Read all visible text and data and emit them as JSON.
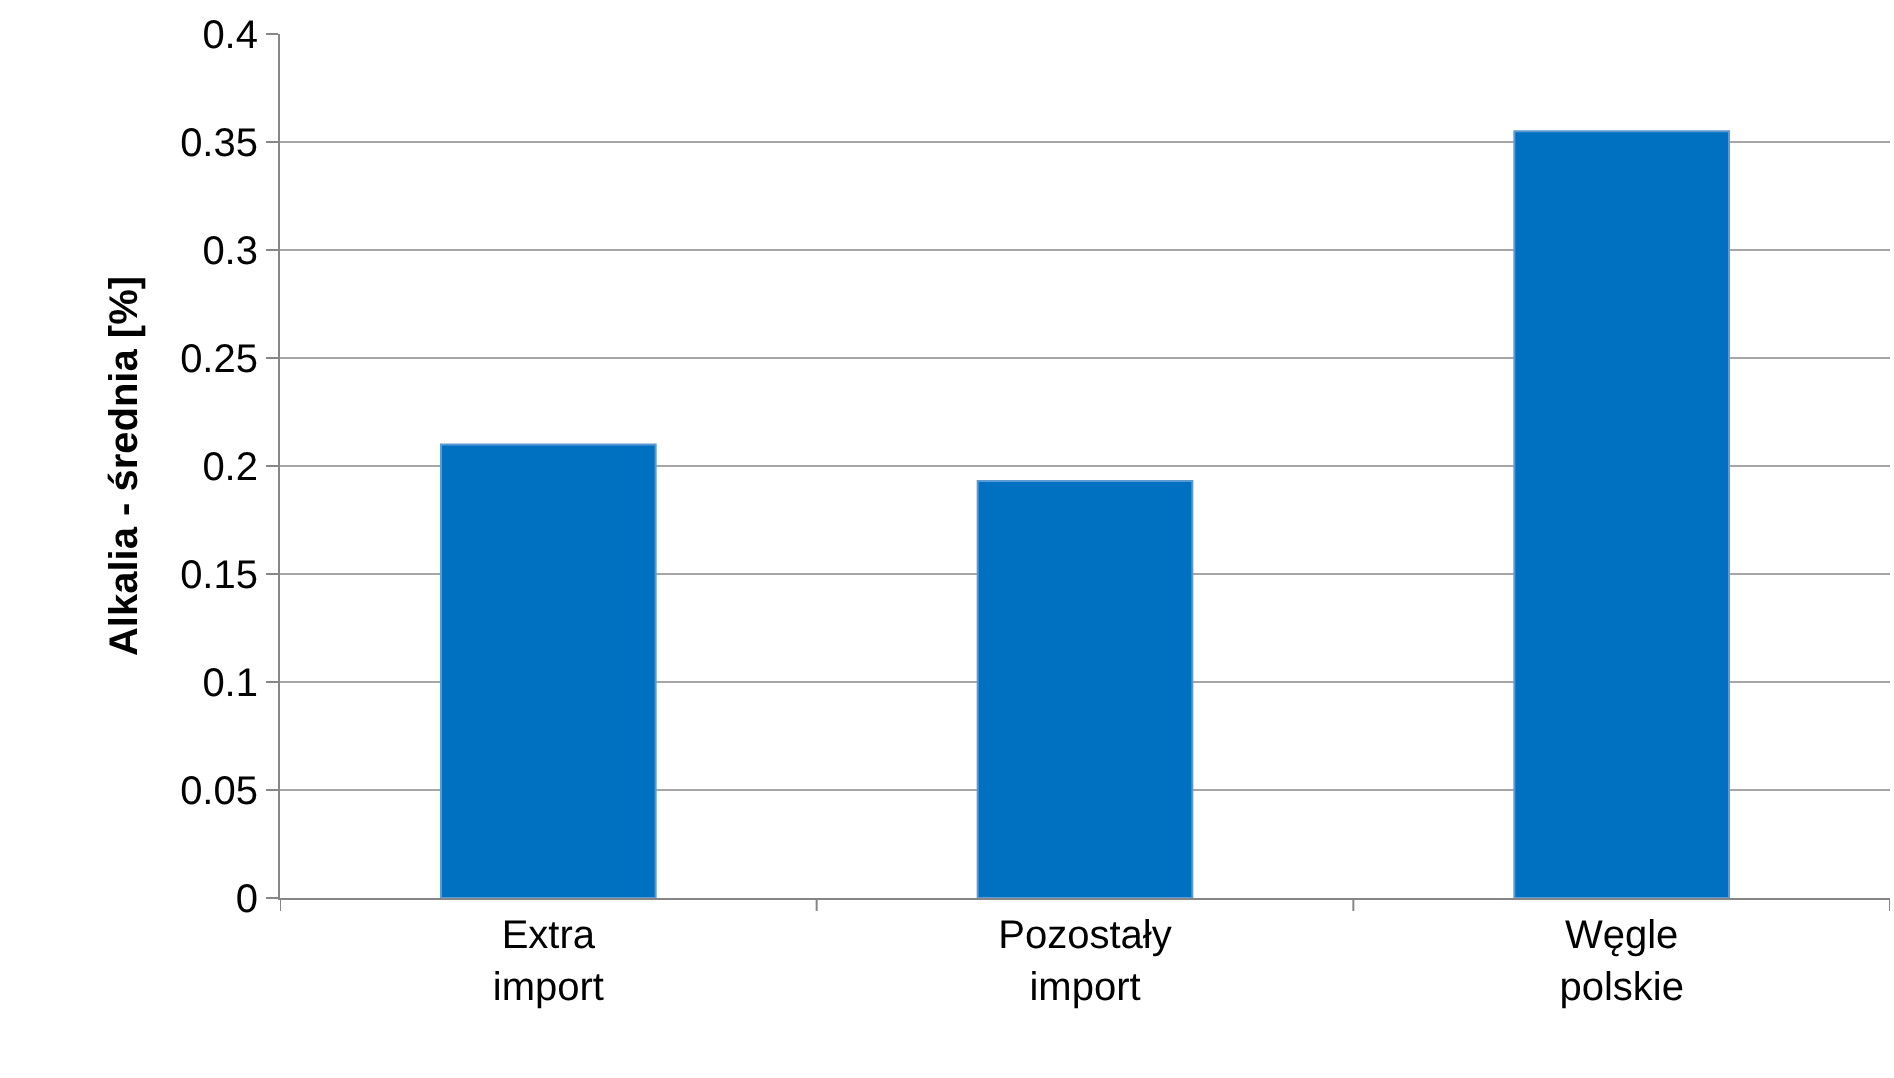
{
  "chart_data": {
    "type": "bar",
    "ylabel": "Alkalia - średnia [%]",
    "categories": [
      "Extra\nimport",
      "Pozostały\nimport",
      "Węgle\npolskie"
    ],
    "values": [
      0.21,
      0.193,
      0.355
    ],
    "color": "#0070c0",
    "ylim": [
      0,
      0.4
    ],
    "yticks": [
      0,
      0.05,
      0.1,
      0.15,
      0.2,
      0.25,
      0.3,
      0.35,
      0.4
    ],
    "grid": "y"
  }
}
